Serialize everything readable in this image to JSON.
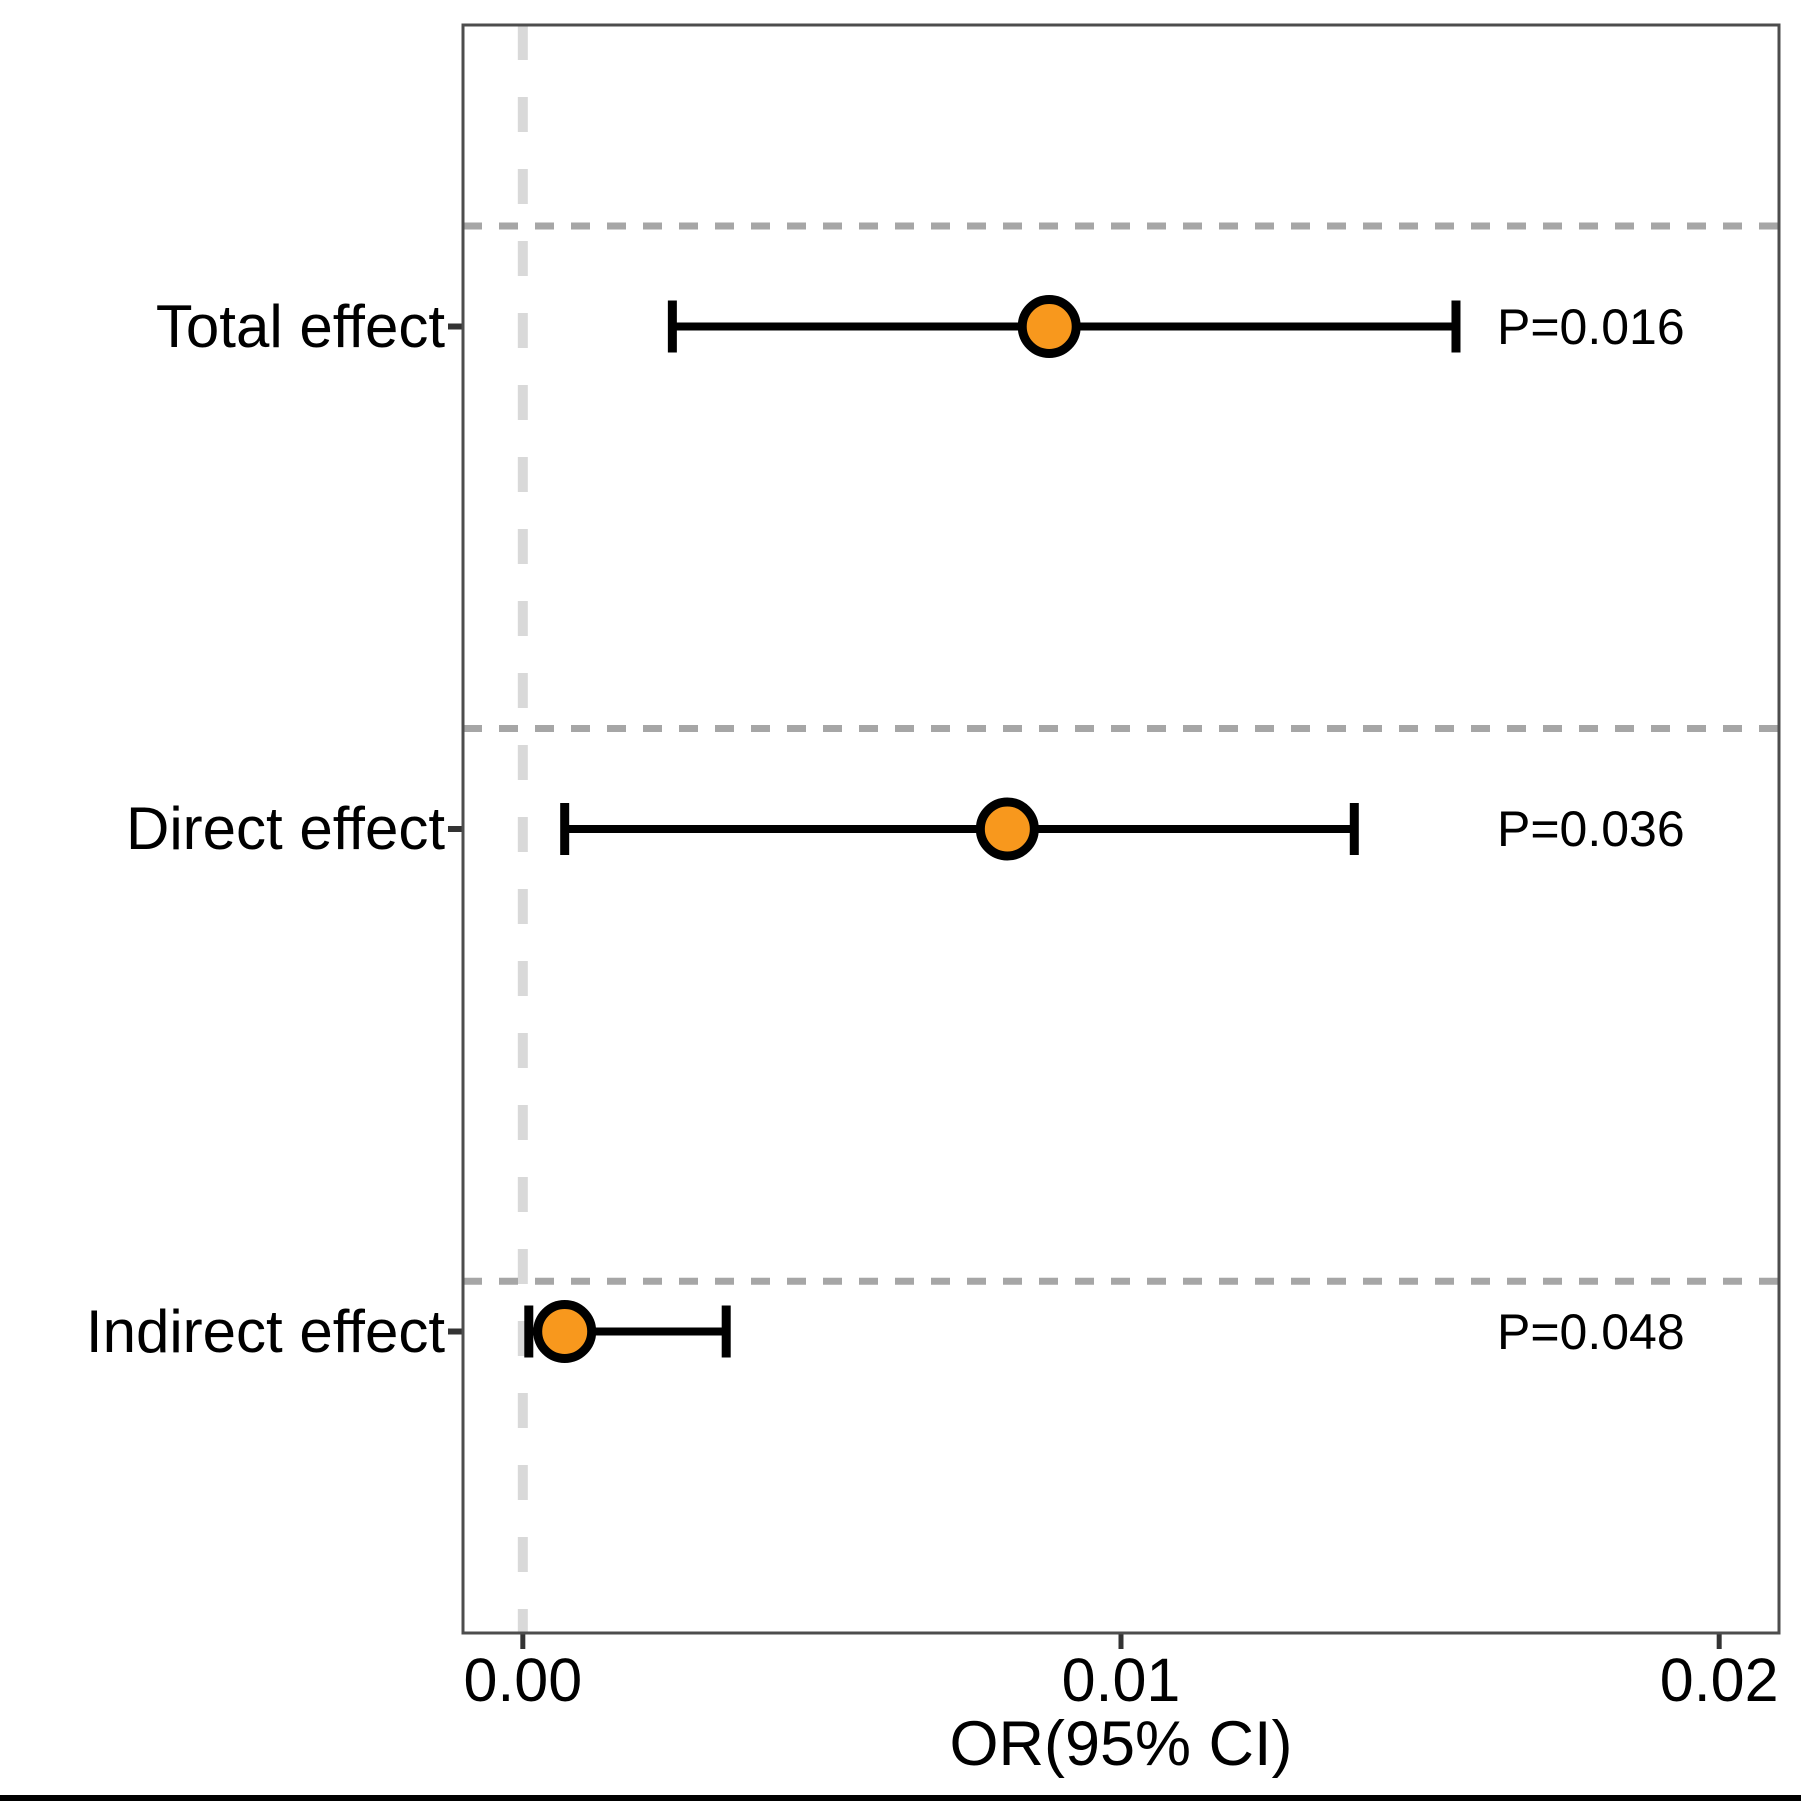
{
  "figure": {
    "background": "#FFFFFF",
    "bottom_bar_color": "#000000"
  },
  "chart_data": {
    "type": "scatter",
    "subtype": "forest-plot",
    "title": "",
    "xlabel": "OR(95% CI)",
    "ylabel": "",
    "xlim": [
      -0.001,
      0.021
    ],
    "ylim": [
      0.4,
      3.6
    ],
    "grid": "dashed horizontal gridline above each row; dashed vertical reference line at x=0",
    "legend": "none",
    "reference_line_x": 0,
    "gridlines_y": [
      3.2,
      2.2,
      1.1
    ],
    "x_ticks": [
      {
        "value": 0,
        "label": "0.00"
      },
      {
        "value": 0.01,
        "label": "0.01"
      },
      {
        "value": 0.02,
        "label": "0.02"
      }
    ],
    "categories": [
      "Total effect",
      "Direct effect",
      "Indirect effect"
    ],
    "rows": [
      {
        "category": "Total effect",
        "y_pos": 3,
        "or": 0.0088,
        "ci_low": 0.0025,
        "ci_high": 0.0156,
        "p": 0.016,
        "p_label": "P=0.016"
      },
      {
        "category": "Direct effect",
        "y_pos": 2,
        "or": 0.0081,
        "ci_low": 0.0007,
        "ci_high": 0.0139,
        "p": 0.036,
        "p_label": "P=0.036"
      },
      {
        "category": "Indirect effect",
        "y_pos": 1,
        "or": 0.0007,
        "ci_low": 0.0001,
        "ci_high": 0.0034,
        "p": 0.048,
        "p_label": "P=0.048"
      }
    ],
    "colors": {
      "point_fill": "#F8981D",
      "point_stroke": "#000000",
      "error_bar": "#000000",
      "reference_line": "#D9D9D9",
      "gridline": "#A6A6A6",
      "panel_border": "#4D4D4D",
      "tick": "#333333",
      "text": "#000000"
    }
  }
}
